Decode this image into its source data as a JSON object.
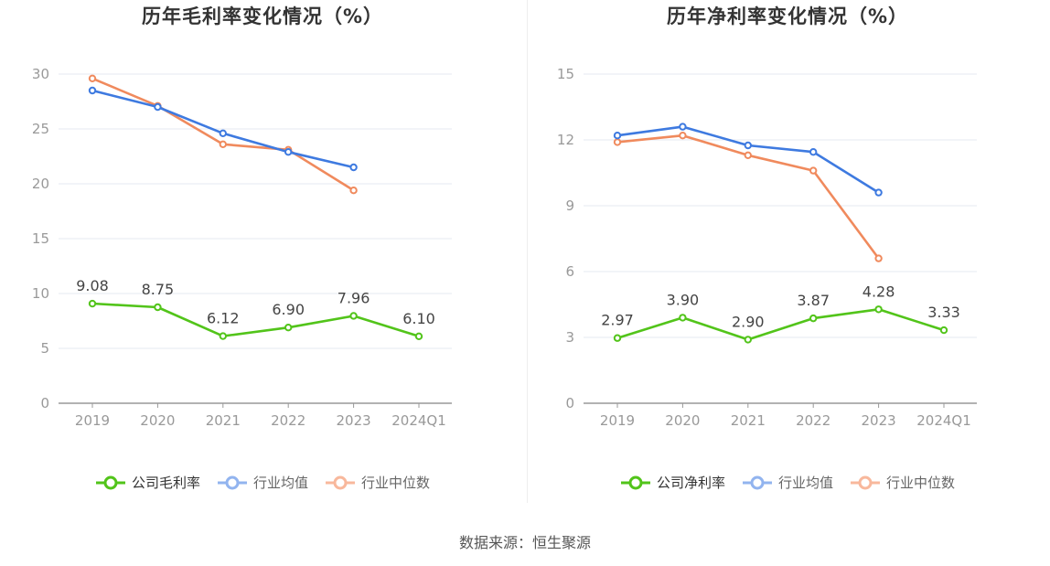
{
  "colors": {
    "company": "#52c41a",
    "industry_avg": "#3e7ae0",
    "industry_median": "#f08a5d",
    "legend_avg": "#92b4ef",
    "legend_median": "#f8b89c",
    "grid": "#e6e9f2",
    "axis": "#999999",
    "tick_text": "#999999",
    "label_text": "#444444"
  },
  "source": "数据来源：恒生聚源",
  "chart_data": [
    {
      "type": "line",
      "title": "历年毛利率变化情况（%）",
      "categories": [
        "2019",
        "2020",
        "2021",
        "2022",
        "2023",
        "2024Q1"
      ],
      "ylim": [
        0,
        30
      ],
      "yticks": [
        0,
        5,
        10,
        15,
        20,
        25,
        30
      ],
      "grid": true,
      "legend_position": "bottom",
      "series": [
        {
          "name": "公司毛利率",
          "key": "company",
          "values": [
            9.08,
            8.75,
            6.12,
            6.9,
            7.96,
            6.1
          ],
          "labels": [
            "9.08",
            "8.75",
            "6.12",
            "6.90",
            "7.96",
            "6.10"
          ]
        },
        {
          "name": "行业均值",
          "key": "industry_avg",
          "values": [
            28.5,
            27.0,
            24.6,
            22.9,
            21.5,
            null
          ]
        },
        {
          "name": "行业中位数",
          "key": "industry_median",
          "values": [
            29.6,
            27.1,
            23.6,
            23.1,
            19.4,
            null
          ]
        }
      ]
    },
    {
      "type": "line",
      "title": "历年净利率变化情况（%）",
      "categories": [
        "2019",
        "2020",
        "2021",
        "2022",
        "2023",
        "2024Q1"
      ],
      "ylim": [
        0,
        15
      ],
      "yticks": [
        0,
        3,
        6,
        9,
        12,
        15
      ],
      "grid": true,
      "legend_position": "bottom",
      "series": [
        {
          "name": "公司净利率",
          "key": "company",
          "values": [
            2.97,
            3.9,
            2.9,
            3.87,
            4.28,
            3.33
          ],
          "labels": [
            "2.97",
            "3.90",
            "2.90",
            "3.87",
            "4.28",
            "3.33"
          ]
        },
        {
          "name": "行业均值",
          "key": "industry_avg",
          "values": [
            12.2,
            12.6,
            11.75,
            11.45,
            9.6,
            null
          ]
        },
        {
          "name": "行业中位数",
          "key": "industry_median",
          "values": [
            11.9,
            12.2,
            11.3,
            10.6,
            6.6,
            null
          ]
        }
      ]
    }
  ]
}
